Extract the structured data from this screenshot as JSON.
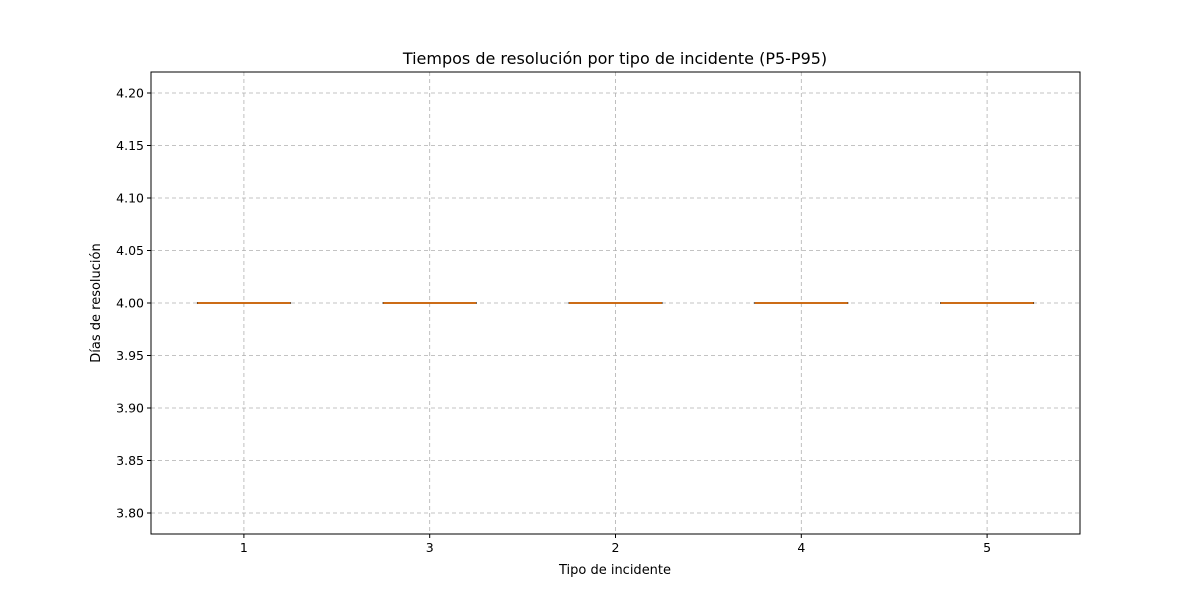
{
  "chart_data": {
    "type": "box",
    "title": "Tiempos de resolución por tipo de incidente (P5-P95)",
    "xlabel": "Tipo de incidente",
    "ylabel": "Días de resolución",
    "categories": [
      "1",
      "3",
      "2",
      "4",
      "5"
    ],
    "boxes": [
      {
        "category": "1",
        "whisker_low": 4.0,
        "q1": 4.0,
        "median": 4.0,
        "q3": 4.0,
        "whisker_high": 4.0
      },
      {
        "category": "3",
        "whisker_low": 4.0,
        "q1": 4.0,
        "median": 4.0,
        "q3": 4.0,
        "whisker_high": 4.0
      },
      {
        "category": "2",
        "whisker_low": 4.0,
        "q1": 4.0,
        "median": 4.0,
        "q3": 4.0,
        "whisker_high": 4.0
      },
      {
        "category": "4",
        "whisker_low": 4.0,
        "q1": 4.0,
        "median": 4.0,
        "q3": 4.0,
        "whisker_high": 4.0
      },
      {
        "category": "5",
        "whisker_low": 4.0,
        "q1": 4.0,
        "median": 4.0,
        "q3": 4.0,
        "whisker_high": 4.0
      }
    ],
    "ylim": [
      3.78,
      4.22
    ],
    "yticks": [
      "3.80",
      "3.85",
      "3.90",
      "3.95",
      "4.00",
      "4.05",
      "4.10",
      "4.15",
      "4.20"
    ],
    "grid": true,
    "colors": {
      "box_edge": "#000000",
      "median": "#ff7f0e",
      "grid": "#b0b0b0"
    }
  }
}
